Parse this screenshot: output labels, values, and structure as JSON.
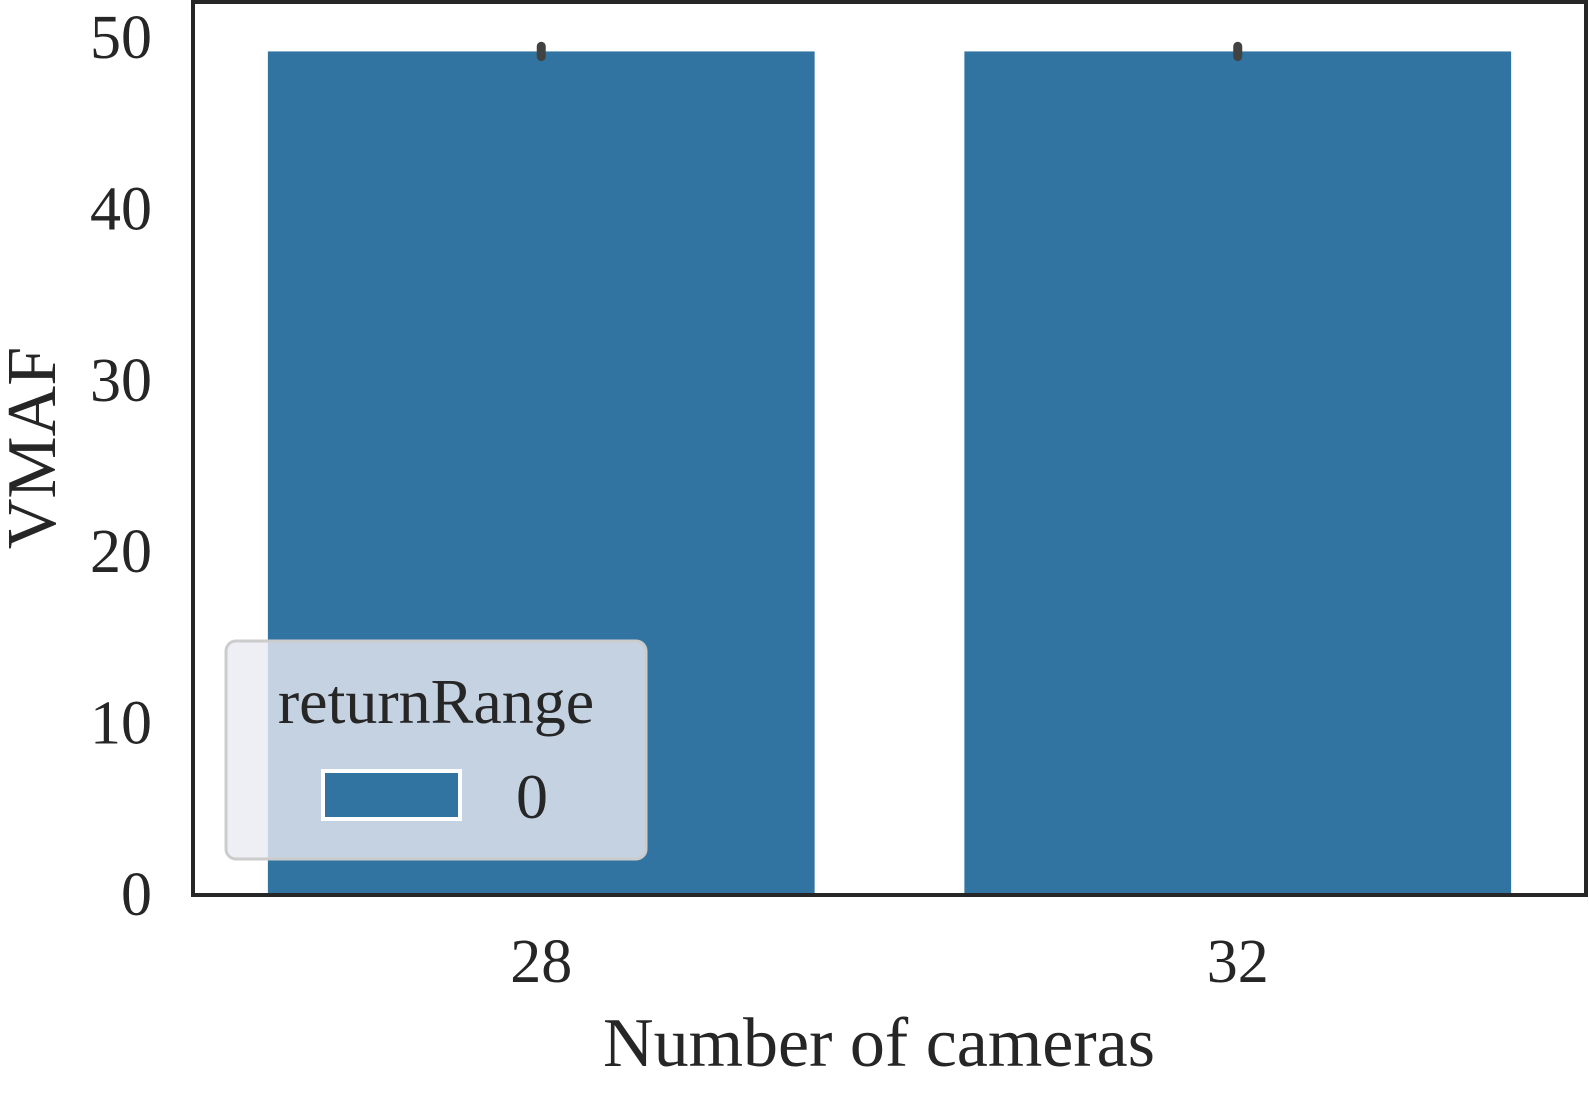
{
  "chart_data": {
    "type": "bar",
    "categories": [
      "28",
      "32"
    ],
    "series": [
      {
        "name": "0",
        "values": [
          49.1,
          49.1
        ],
        "error": [
          [
            48.8,
            49.4
          ],
          [
            48.8,
            49.4
          ]
        ],
        "color": "#3274a1"
      }
    ],
    "xlabel": "Number of cameras",
    "ylabel": "VMAF",
    "ylim": [
      0,
      52
    ],
    "yticks": [
      0,
      10,
      20,
      30,
      40,
      50
    ],
    "grid": false,
    "legend": {
      "title": "returnRange",
      "placement": "lower-left",
      "entries": [
        "0"
      ]
    },
    "colors": {
      "bar": "#3274a1",
      "errorbar": "#424242",
      "axes": "#262626",
      "legend_bg": "#eaeaf2"
    }
  }
}
